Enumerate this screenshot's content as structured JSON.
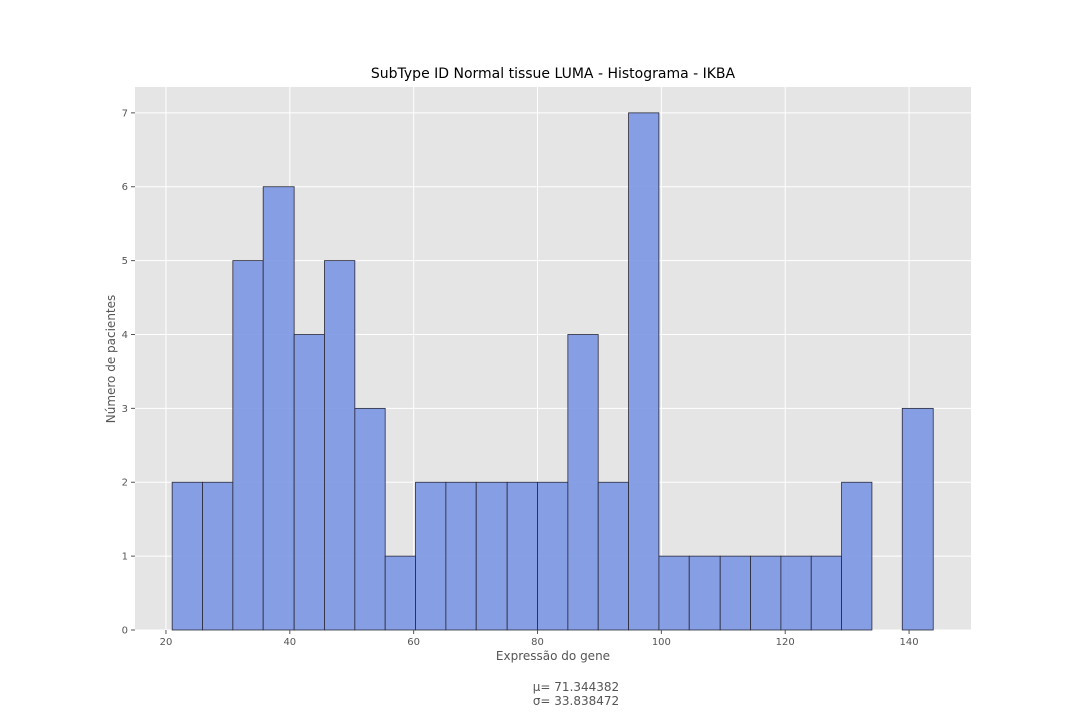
{
  "chart_data": {
    "type": "bar",
    "title": "SubType ID Normal tissue LUMA - Histograma - IKBA",
    "xlabel": "Expressão do gene",
    "ylabel": "Número de pacientes",
    "xlim": [
      15,
      150
    ],
    "ylim": [
      0,
      7.35
    ],
    "xticks": [
      20,
      40,
      60,
      80,
      100,
      120,
      140
    ],
    "yticks": [
      0,
      1,
      2,
      3,
      4,
      5,
      6,
      7
    ],
    "bin_edges": [
      21.0,
      25.9,
      30.8,
      35.7,
      40.7,
      45.6,
      50.5,
      55.4,
      60.3,
      65.2,
      70.1,
      75.1,
      80.0,
      84.9,
      89.8,
      94.7,
      99.6,
      104.5,
      109.5,
      114.4,
      119.3,
      124.2,
      129.1,
      134.0,
      138.9,
      143.9
    ],
    "counts": [
      2,
      2,
      5,
      6,
      4,
      5,
      3,
      1,
      2,
      2,
      2,
      2,
      2,
      4,
      2,
      7,
      1,
      1,
      1,
      1,
      1,
      1,
      2,
      0,
      3
    ],
    "grid": true,
    "colors": {
      "bar_fill": "#7b96e3",
      "bar_edge": "#2a2a3a",
      "background": "#e5e5e5",
      "grid": "#ffffff"
    },
    "annotation": {
      "mu": "μ= 71.344382",
      "sigma": "σ= 33.838472"
    }
  }
}
